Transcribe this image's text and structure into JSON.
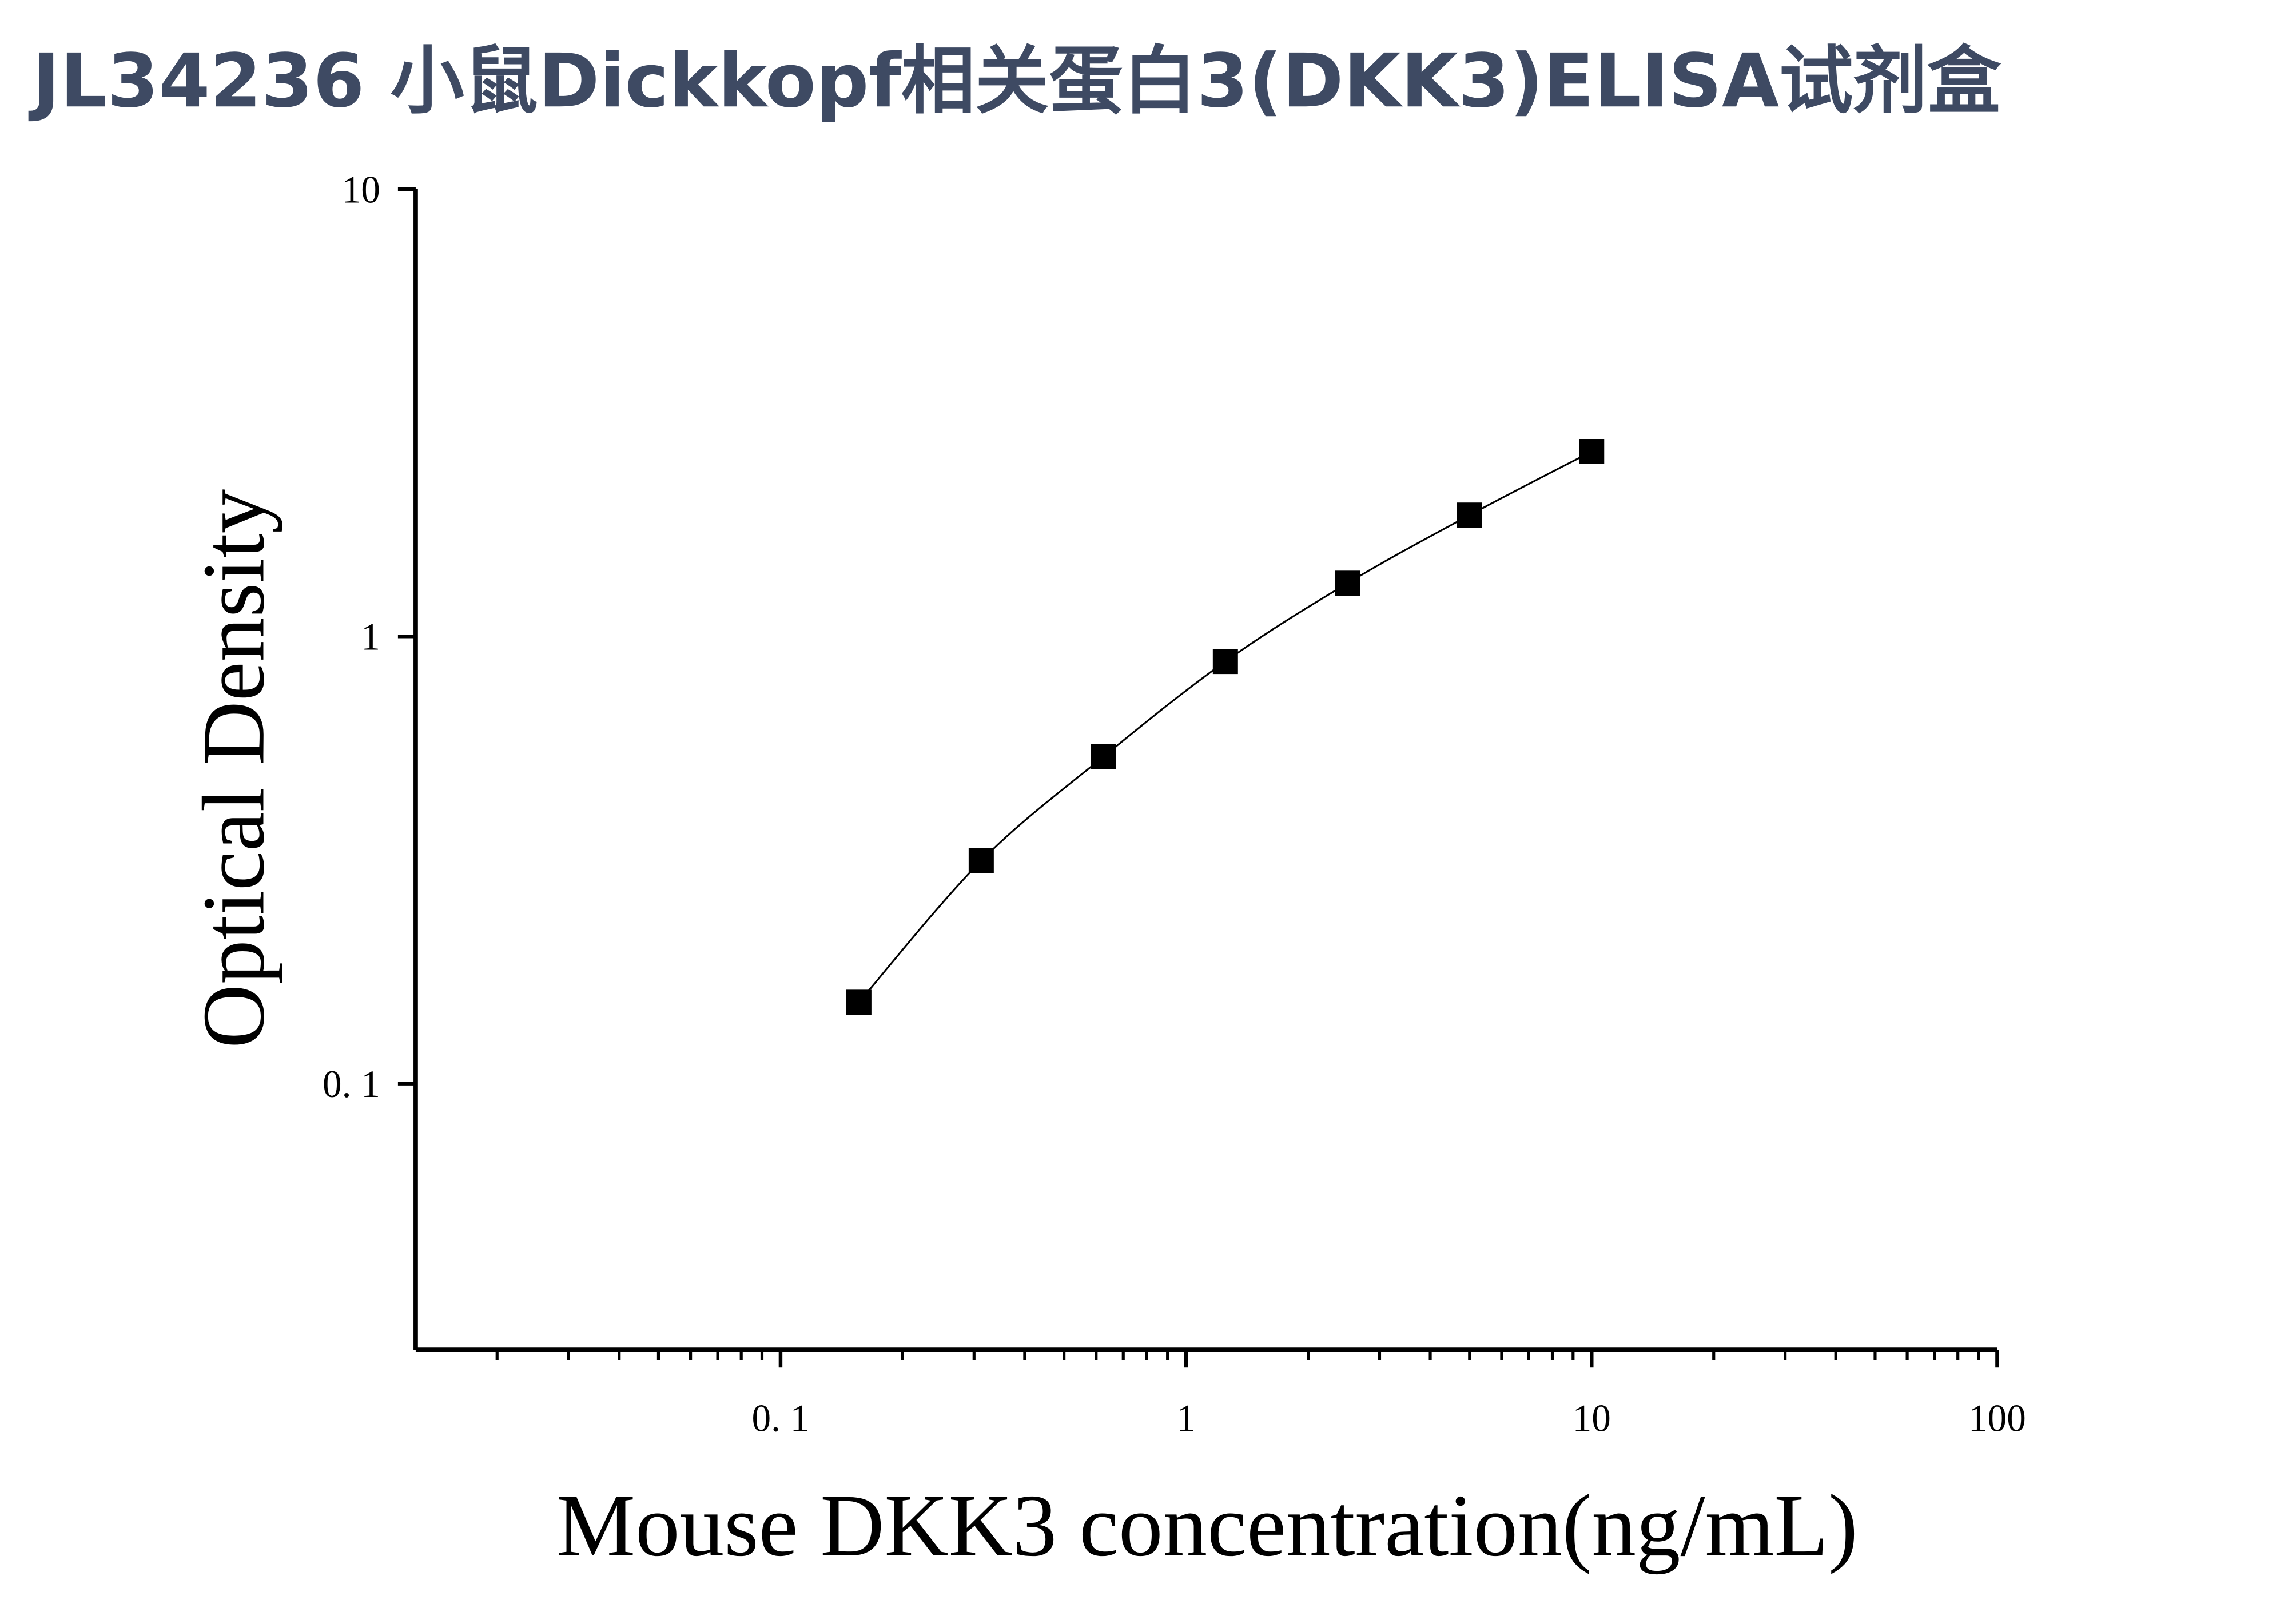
{
  "chart_data": {
    "type": "scatter",
    "title": "JL34236 小鼠Dickkopf相关蛋白3(DKK3)ELISA试剂盒",
    "x_label": "Mouse DKK3 concentration(ng/mL)",
    "y_label": "Optical Density",
    "x_scale": "log",
    "y_scale": "log",
    "xlim": [
      0.0126,
      100
    ],
    "ylim": [
      0.0254,
      10
    ],
    "xticks": [
      {
        "value": 0.1,
        "label": "0. 1"
      },
      1,
      10,
      100
    ],
    "yticks": [
      {
        "value": 0.1,
        "label": "0. 1"
      },
      1,
      10
    ],
    "xminorticks": [
      0.02,
      0.03,
      0.04,
      0.05,
      0.06,
      0.07,
      0.08,
      0.09,
      0.2,
      0.3,
      0.4,
      0.5,
      0.6,
      0.7,
      0.8,
      0.9,
      2,
      3,
      4,
      5,
      6,
      7,
      8,
      9,
      20,
      30,
      40,
      50,
      60,
      70,
      80,
      90
    ],
    "series": [
      {
        "color": "#000000",
        "line": true,
        "x": [
          0.156,
          0.3125,
          0.625,
          1.25,
          2.5,
          5,
          10
        ],
        "values": [
          0.152,
          0.315,
          0.538,
          0.879,
          1.315,
          1.867,
          2.59
        ]
      }
    ]
  }
}
